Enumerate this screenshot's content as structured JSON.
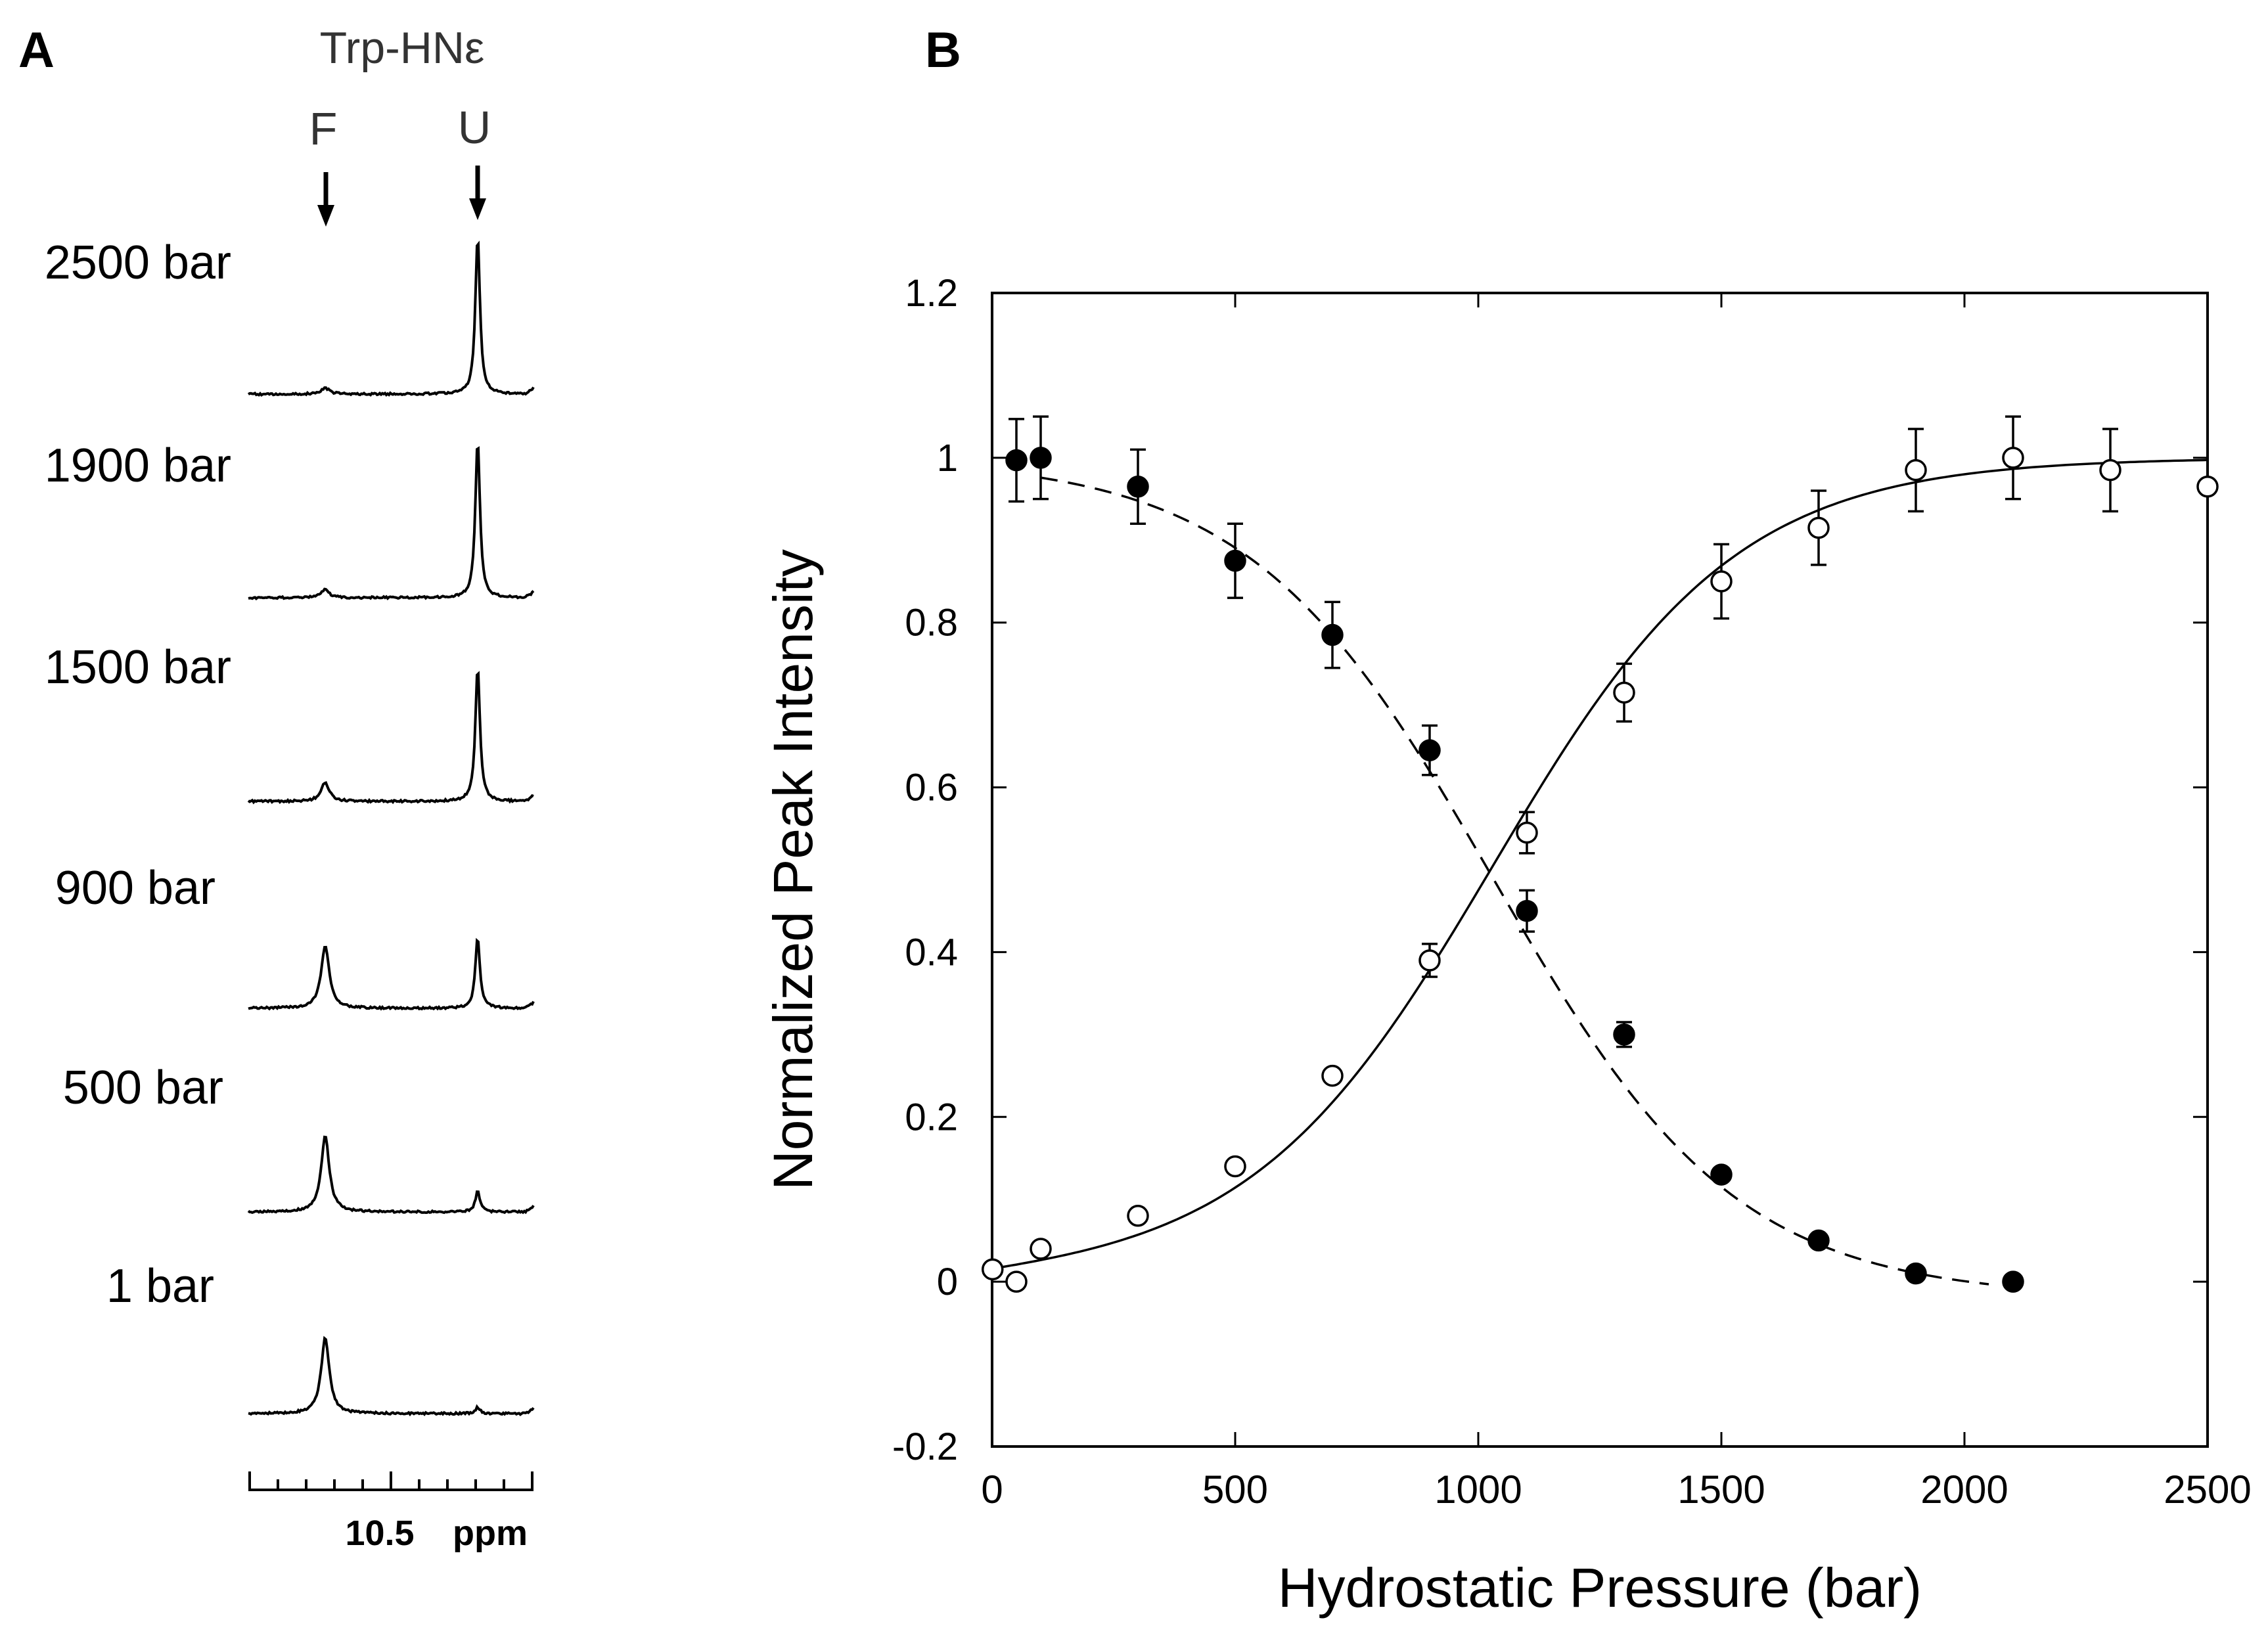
{
  "panels": {
    "a": {
      "label": "A"
    },
    "b": {
      "label": "B"
    }
  },
  "spectra": {
    "header": "Trp-HNε",
    "peak_labels": [
      "F",
      "U"
    ],
    "rows": [
      "2500 bar",
      "1900 bar",
      "1500 bar",
      "900 bar",
      "500 bar",
      "1 bar"
    ],
    "relative_heights": {
      "F": [
        0.04,
        0.05,
        0.12,
        0.4,
        0.48,
        0.48
      ],
      "U": [
        1.0,
        1.0,
        0.85,
        0.45,
        0.13,
        0.04
      ]
    },
    "axis": {
      "tick_label": "10.5",
      "unit": "ppm"
    }
  },
  "chart_data": {
    "type": "scatter",
    "title": "",
    "xlabel": "Hydrostatic Pressure (bar)",
    "ylabel": "Normalized Peak Intensity",
    "xlim": [
      0,
      2500
    ],
    "ylim": [
      -0.2,
      1.2
    ],
    "x_ticks": [
      "0",
      "500",
      "1000",
      "1500",
      "2000",
      "2500"
    ],
    "y_ticks": [
      "-0.2",
      "0",
      "0.2",
      "0.4",
      "0.6",
      "0.8",
      "1",
      "1.2"
    ],
    "grid": false,
    "series": [
      {
        "marker": "filled-circle",
        "fit": "dashed",
        "x": [
          50,
          100,
          300,
          500,
          700,
          900,
          1100,
          1300,
          1500,
          1700,
          1900,
          2100
        ],
        "y": [
          0.997,
          1.0,
          0.965,
          0.875,
          0.785,
          0.645,
          0.45,
          0.3,
          0.13,
          0.05,
          0.01,
          0.0
        ],
        "err": [
          0.05,
          0.05,
          0.045,
          0.045,
          0.04,
          0.03,
          0.025,
          0.015,
          0.01,
          0.01,
          0.01,
          0.01
        ]
      },
      {
        "marker": "open-circle",
        "fit": "solid",
        "x": [
          1,
          50,
          100,
          300,
          500,
          700,
          900,
          1100,
          1300,
          1500,
          1700,
          1900,
          2100,
          2300,
          2500
        ],
        "y": [
          0.015,
          0.0,
          0.04,
          0.08,
          0.14,
          0.25,
          0.39,
          0.545,
          0.715,
          0.85,
          0.915,
          0.985,
          1.0,
          0.985,
          0.965
        ],
        "err": [
          0.0,
          0.0,
          0.0,
          0.01,
          0.01,
          0.01,
          0.02,
          0.025,
          0.035,
          0.045,
          0.045,
          0.05,
          0.05,
          0.05,
          0.0
        ]
      }
    ]
  }
}
